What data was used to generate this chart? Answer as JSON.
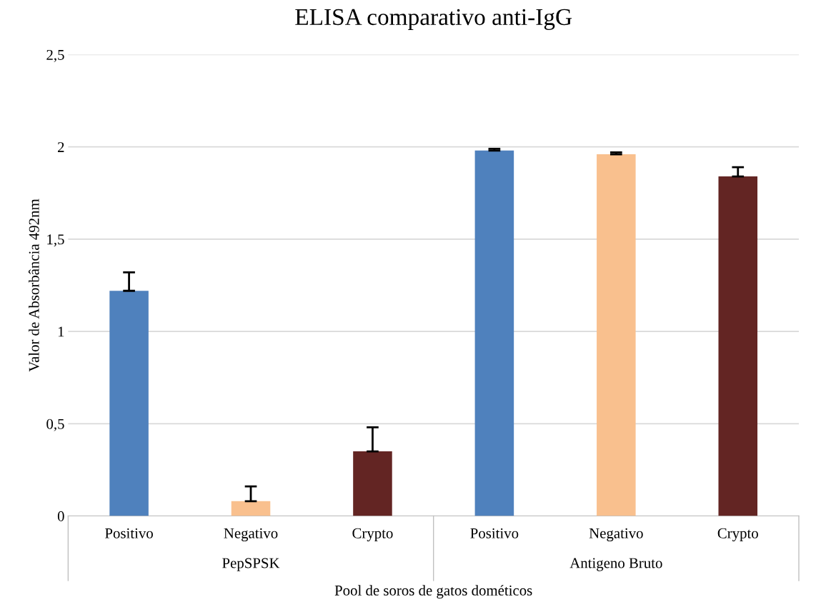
{
  "chart_data": {
    "type": "bar",
    "title": "ELISA comparativo anti-IgG",
    "xlabel": "Pool de soros de gatos dométicos",
    "ylabel": "Valor de Absorbância 492nm",
    "categories": [
      "Positivo",
      "Negativo",
      "Crypto",
      "Positivo",
      "Negativo",
      "Crypto"
    ],
    "values": [
      1.22,
      0.08,
      0.35,
      1.98,
      1.96,
      1.84
    ],
    "colors": [
      "#4f81bd",
      "#f9c08e",
      "#632523",
      "#4f81bd",
      "#f9c08e",
      "#632523"
    ],
    "errors": [
      [
        1.22,
        1.32
      ],
      [
        0.08,
        0.16
      ],
      [
        0.35,
        0.48
      ],
      [
        1.98,
        1.99
      ],
      [
        1.96,
        1.97
      ],
      [
        1.84,
        1.89
      ]
    ],
    "annotations": [
      "PepSPSK",
      "Antigeno Bruto"
    ],
    "ylim": [
      0,
      2.5
    ],
    "yticks": [
      0,
      {
        "value": 0.5,
        "label": "0,5"
      },
      1,
      {
        "value": 1.5,
        "label": "1,5"
      },
      2,
      {
        "value": 2.5,
        "label": "2,5"
      }
    ],
    "grid": "y",
    "legend": false
  }
}
